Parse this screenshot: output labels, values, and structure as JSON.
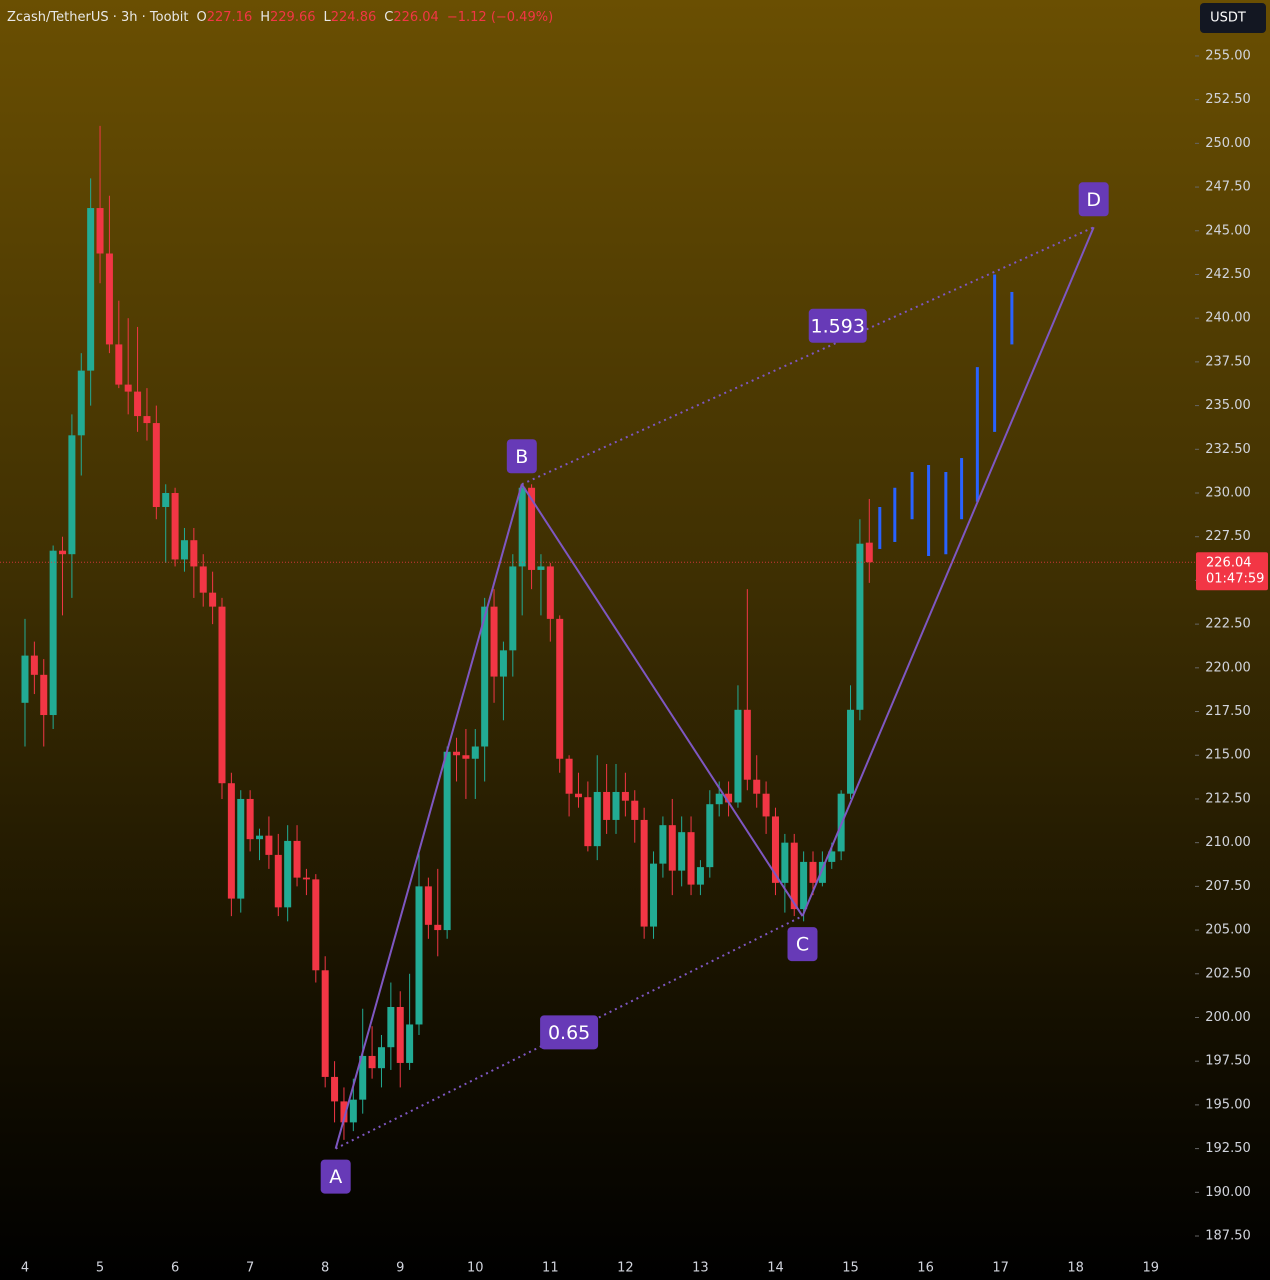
{
  "chart_data": {
    "type": "candlestick",
    "symbol": "Zcash/TetherUS · 3h · Toobit",
    "ohlc_letters": [
      "O",
      "H",
      "L",
      "C"
    ],
    "change": "−1.12 (−0.49%)",
    "currency": "USDT",
    "countdown": "01:47:59",
    "last_price": {
      "value": 226.04,
      "label": "226.04"
    },
    "up_color": "#22ab94",
    "down_color": "#f23645",
    "x": [
      4,
      4.125,
      4.25,
      4.375,
      4.5,
      4.625,
      4.75,
      4.875,
      5,
      5.125,
      5.25,
      5.375,
      5.5,
      5.625,
      5.75,
      5.875,
      6,
      6.125,
      6.25,
      6.375,
      6.5,
      6.625,
      6.75,
      6.875,
      7,
      7.125,
      7.25,
      7.375,
      7.5,
      7.625,
      7.75,
      7.875,
      8,
      8.125,
      8.25,
      8.375,
      8.5,
      8.625,
      8.75,
      8.875,
      9,
      9.125,
      9.25,
      9.375,
      9.5,
      9.625,
      9.75,
      9.875,
      10,
      10.125,
      10.25,
      10.375,
      10.5,
      10.625,
      10.75,
      10.875,
      11,
      11.125,
      11.25,
      11.375,
      11.5,
      11.625,
      11.75,
      11.875,
      12,
      12.125,
      12.25,
      12.375,
      12.5,
      12.625,
      12.75,
      12.875,
      13,
      13.125,
      13.25,
      13.375,
      13.5,
      13.625,
      13.75,
      13.875,
      14,
      14.125,
      14.25,
      14.375,
      14.5,
      14.625,
      14.75,
      14.875,
      15,
      15.125,
      15.25
    ],
    "ohlc": [
      [
        218,
        222.8,
        215.5,
        220.7
      ],
      [
        220.7,
        221.5,
        218.5,
        219.6
      ],
      [
        219.6,
        220.5,
        215.5,
        217.3
      ],
      [
        217.3,
        227,
        216.5,
        226.7
      ],
      [
        226.7,
        227.5,
        223,
        226.5
      ],
      [
        226.5,
        234.5,
        224,
        233.3
      ],
      [
        233.3,
        238,
        231,
        237
      ],
      [
        237,
        248,
        235,
        246.3
      ],
      [
        246.3,
        251,
        242,
        243.7
      ],
      [
        243.7,
        247,
        238,
        238.5
      ],
      [
        238.5,
        241,
        236,
        236.2
      ],
      [
        236.2,
        240,
        234.5,
        235.8
      ],
      [
        235.8,
        239.5,
        233.5,
        234.4
      ],
      [
        234.4,
        236,
        233,
        234
      ],
      [
        234,
        235,
        228.5,
        229.2
      ],
      [
        229.2,
        230.5,
        226,
        230
      ],
      [
        230,
        230.3,
        225.8,
        226.2
      ],
      [
        226.2,
        228,
        225.5,
        227.3
      ],
      [
        227.3,
        228,
        224,
        225.8
      ],
      [
        225.8,
        226.5,
        223.5,
        224.3
      ],
      [
        224.3,
        225.5,
        222.5,
        223.5
      ],
      [
        223.5,
        224,
        212.5,
        213.4
      ],
      [
        213.4,
        214,
        205.8,
        206.8
      ],
      [
        206.8,
        213,
        206,
        212.5
      ],
      [
        212.5,
        213,
        209.5,
        210.2
      ],
      [
        210.2,
        210.8,
        209,
        210.4
      ],
      [
        210.4,
        211.5,
        208.5,
        209.3
      ],
      [
        209.3,
        210.5,
        205.8,
        206.3
      ],
      [
        206.3,
        211,
        205.5,
        210.1
      ],
      [
        210.1,
        211,
        207.5,
        208
      ],
      [
        208,
        208.5,
        207,
        207.9
      ],
      [
        207.9,
        208.2,
        202,
        202.7
      ],
      [
        202.7,
        203.5,
        196,
        196.6
      ],
      [
        196.6,
        197.5,
        194,
        195.2
      ],
      [
        195.2,
        196,
        193,
        194
      ],
      [
        194,
        196.5,
        193.5,
        195.3
      ],
      [
        195.3,
        200.5,
        194.5,
        197.8
      ],
      [
        197.8,
        199.5,
        196.5,
        197.1
      ],
      [
        197.1,
        199,
        196,
        198.3
      ],
      [
        198.3,
        202,
        197,
        200.6
      ],
      [
        200.6,
        201.5,
        196,
        197.4
      ],
      [
        197.4,
        202.5,
        197,
        199.6
      ],
      [
        199.6,
        209.5,
        199,
        207.5
      ],
      [
        207.5,
        208,
        204.5,
        205.3
      ],
      [
        205.3,
        208.5,
        203.5,
        205
      ],
      [
        205,
        215.5,
        204.5,
        215.2
      ],
      [
        215.2,
        216,
        213.5,
        215
      ],
      [
        215,
        216.5,
        212.5,
        214.8
      ],
      [
        214.8,
        216.5,
        212.5,
        215.5
      ],
      [
        215.5,
        224,
        213.5,
        223.5
      ],
      [
        223.5,
        224.5,
        218,
        219.5
      ],
      [
        219.5,
        221.5,
        217,
        221
      ],
      [
        221,
        226.5,
        219.5,
        225.8
      ],
      [
        225.8,
        230.5,
        223,
        230.3
      ],
      [
        230.3,
        230.5,
        224.5,
        225.6
      ],
      [
        225.6,
        226.5,
        223,
        225.8
      ],
      [
        225.8,
        226,
        221.5,
        222.8
      ],
      [
        222.8,
        223,
        214,
        214.8
      ],
      [
        214.8,
        215,
        211.5,
        212.8
      ],
      [
        212.8,
        214,
        212,
        212.6
      ],
      [
        212.6,
        213.5,
        209.5,
        209.8
      ],
      [
        209.8,
        215,
        209,
        212.9
      ],
      [
        212.9,
        214.5,
        210.5,
        211.3
      ],
      [
        211.3,
        214.5,
        210.5,
        212.9
      ],
      [
        212.9,
        214,
        211.5,
        212.4
      ],
      [
        212.4,
        213,
        210,
        211.3
      ],
      [
        211.3,
        212,
        204.5,
        205.2
      ],
      [
        205.2,
        209.5,
        204.5,
        208.8
      ],
      [
        208.8,
        211.5,
        208,
        211
      ],
      [
        211,
        212.5,
        207,
        208.4
      ],
      [
        208.4,
        211.5,
        207.5,
        210.6
      ],
      [
        210.6,
        211.5,
        207,
        207.6
      ],
      [
        207.6,
        209,
        207,
        208.6
      ],
      [
        208.6,
        213,
        208,
        212.2
      ],
      [
        212.2,
        213.5,
        211.5,
        212.8
      ],
      [
        212.8,
        213.5,
        211.5,
        212.3
      ],
      [
        212.3,
        219,
        212,
        217.6
      ],
      [
        217.6,
        224.5,
        213,
        213.6
      ],
      [
        213.6,
        215,
        212,
        212.8
      ],
      [
        212.8,
        213.5,
        210.5,
        211.5
      ],
      [
        211.5,
        212,
        207,
        207.7
      ],
      [
        207.7,
        210.5,
        206,
        210
      ],
      [
        210,
        210.5,
        205.8,
        206.2
      ],
      [
        206.2,
        209.5,
        205.5,
        208.9
      ],
      [
        208.9,
        209.5,
        207,
        207.7
      ],
      [
        207.7,
        209.5,
        207.5,
        208.9
      ],
      [
        208.9,
        210,
        208.5,
        209.5
      ],
      [
        209.5,
        213,
        209,
        212.8
      ],
      [
        212.8,
        219,
        212.5,
        217.6
      ],
      [
        217.6,
        228.5,
        217,
        227.1
      ],
      [
        227.16,
        229.66,
        224.86,
        226.04
      ]
    ],
    "projection": {
      "color": "#2962ff",
      "x": [
        15.39,
        15.59,
        15.82,
        16.04,
        16.27,
        16.48,
        16.69,
        16.92,
        17.15
      ],
      "low": [
        226.8,
        227.2,
        228.5,
        226.4,
        226.5,
        228.5,
        229.5,
        233.5,
        238.5
      ],
      "high": [
        229.2,
        230.3,
        231.2,
        231.6,
        231.2,
        232,
        237.2,
        242.5,
        241.5
      ]
    },
    "pattern": {
      "color": "#7e57c2",
      "box_color": "#673ab7",
      "labels": [
        "A",
        "B",
        "C",
        "D"
      ],
      "x": [
        8.14,
        10.62,
        14.36,
        18.24
      ],
      "y": [
        192.5,
        230.5,
        205.8,
        245.2
      ],
      "ratios": [
        0.65,
        1.593
      ]
    },
    "xlim": [
      3.667,
      19.59
    ],
    "xticks": [
      4,
      5,
      6,
      7,
      8,
      9,
      10,
      11,
      12,
      13,
      14,
      15,
      16,
      17,
      18,
      19
    ],
    "ylim": [
      186.7,
      258.2
    ],
    "yticks": [
      {
        "value": 187.5,
        "label": "187.50"
      },
      {
        "value": 190,
        "label": "190.00"
      },
      {
        "value": 192.5,
        "label": "192.50"
      },
      {
        "value": 195,
        "label": "195.00"
      },
      {
        "value": 197.5,
        "label": "197.50"
      },
      {
        "value": 200,
        "label": "200.00"
      },
      {
        "value": 202.5,
        "label": "202.50"
      },
      {
        "value": 205,
        "label": "205.00"
      },
      {
        "value": 207.5,
        "label": "207.50"
      },
      {
        "value": 210,
        "label": "210.00"
      },
      {
        "value": 212.5,
        "label": "212.50"
      },
      {
        "value": 215,
        "label": "215.00"
      },
      {
        "value": 217.5,
        "label": "217.50"
      },
      {
        "value": 220,
        "label": "220.00"
      },
      {
        "value": 222.5,
        "label": "222.50"
      },
      {
        "value": 225,
        "label": "225.00"
      },
      {
        "value": 227.5,
        "label": "227.50"
      },
      {
        "value": 230,
        "label": "230.00"
      },
      {
        "value": 232.5,
        "label": "232.50"
      },
      {
        "value": 235,
        "label": "235.00"
      },
      {
        "value": 237.5,
        "label": "237.50"
      },
      {
        "value": 240,
        "label": "240.00"
      },
      {
        "value": 242.5,
        "label": "242.50"
      },
      {
        "value": 245,
        "label": "245.00"
      },
      {
        "value": 247.5,
        "label": "247.50"
      },
      {
        "value": 250,
        "label": "250.00"
      },
      {
        "value": 252.5,
        "label": "252.50"
      },
      {
        "value": 255,
        "label": "255.00"
      }
    ]
  }
}
